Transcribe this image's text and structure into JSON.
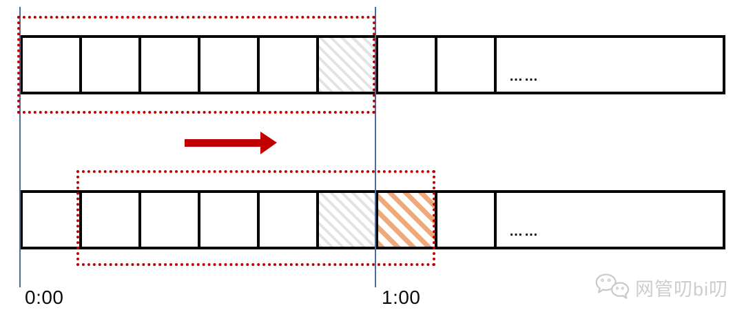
{
  "diagram": {
    "type": "sliding-window-timeline",
    "time_labels": {
      "start": "0:00",
      "end": "1:00"
    },
    "bars": {
      "top": {
        "cells": [
          {
            "hatch": "none"
          },
          {
            "hatch": "none"
          },
          {
            "hatch": "none"
          },
          {
            "hatch": "none"
          },
          {
            "hatch": "none"
          },
          {
            "hatch": "gray"
          },
          {
            "hatch": "none"
          },
          {
            "hatch": "none"
          },
          {
            "hatch": "none",
            "wide": true,
            "label": "……"
          }
        ]
      },
      "bottom": {
        "cells": [
          {
            "hatch": "none"
          },
          {
            "hatch": "none"
          },
          {
            "hatch": "none"
          },
          {
            "hatch": "none"
          },
          {
            "hatch": "none"
          },
          {
            "hatch": "gray"
          },
          {
            "hatch": "orange"
          },
          {
            "hatch": "none"
          },
          {
            "hatch": "none",
            "wide": true,
            "label": "……"
          }
        ]
      }
    },
    "arrow": {
      "direction": "right"
    },
    "colors": {
      "window_border_red": "#c00000",
      "arrow_red": "#c00000",
      "time_line_blue": "#4a6d99",
      "bar_border_black": "#000000",
      "hatch_gray": "#e3e3e3",
      "hatch_orange": "#efa878",
      "watermark_gray": "#cdcdcd"
    }
  },
  "watermark": {
    "text": "网管叨bi叨",
    "icon": "wechat-chat-bubbles-icon"
  }
}
